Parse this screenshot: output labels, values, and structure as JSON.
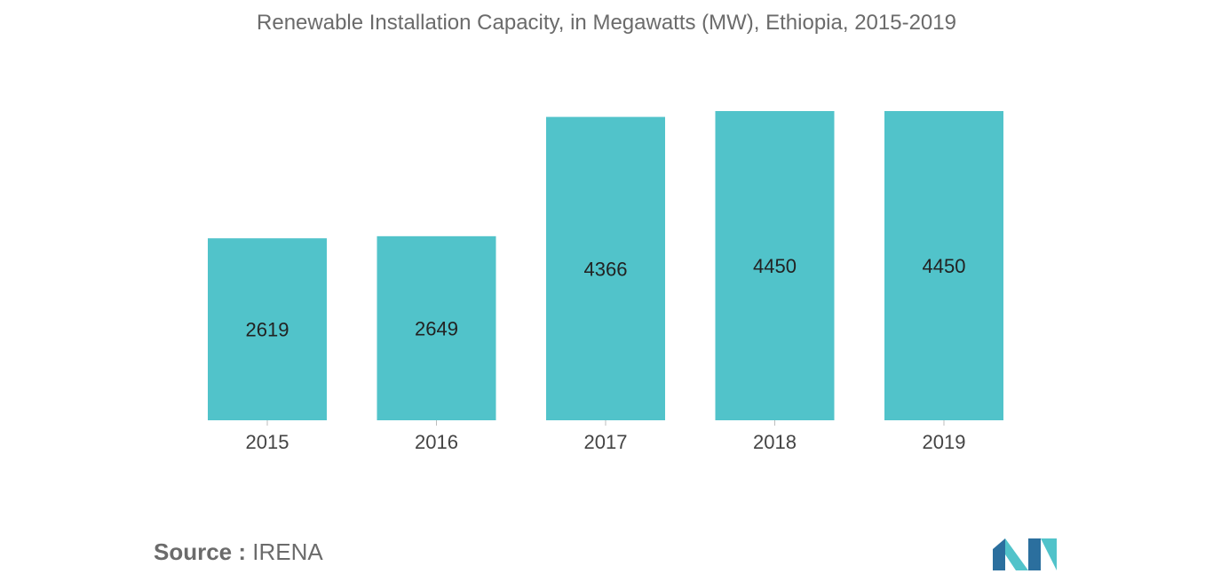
{
  "chart_data": {
    "type": "bar",
    "title": "Renewable Installation Capacity, in Megawatts (MW), Ethiopia, 2015-2019",
    "categories": [
      "2015",
      "2016",
      "2017",
      "2018",
      "2019"
    ],
    "values": [
      2619,
      2649,
      4366,
      4450,
      4450
    ],
    "data_labels": [
      "2619",
      "2649",
      "4366",
      "4450",
      "4450"
    ],
    "xlabel": "",
    "ylabel": "",
    "ylim": [
      0,
      4450
    ],
    "grid": false,
    "legend": "none",
    "bar_color": "#51c3ca"
  },
  "source": {
    "label": "Source :",
    "value": "IRENA"
  },
  "logo": {
    "icon": "mordor-intelligence-logo-icon",
    "colors": [
      "#2b6f9e",
      "#51c3ca"
    ]
  }
}
